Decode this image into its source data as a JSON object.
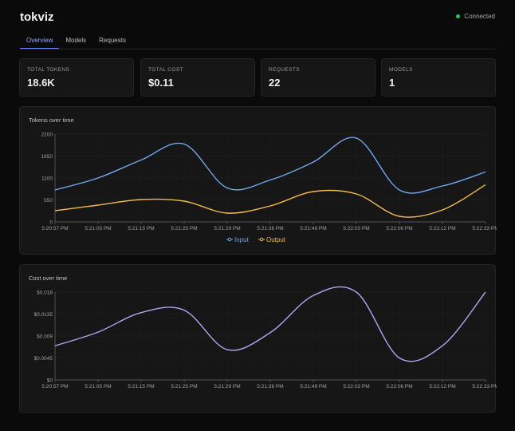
{
  "app": {
    "title": "tokviz",
    "status": "Connected"
  },
  "tabs": [
    {
      "label": "Overview"
    },
    {
      "label": "Models"
    },
    {
      "label": "Requests"
    }
  ],
  "stats": [
    {
      "label": "TOTAL TOKENS",
      "value": "18.6K"
    },
    {
      "label": "TOTAL COST",
      "value": "$0.11"
    },
    {
      "label": "REQUESTS",
      "value": "22"
    },
    {
      "label": "MODELS",
      "value": "1"
    }
  ],
  "colors": {
    "input": "#6fa8ec",
    "output": "#f0b94a",
    "cost": "#b4a3f2",
    "connected": "#22c55e",
    "accent": "#6d8ef7"
  },
  "chart_data": [
    {
      "type": "line",
      "title": "Tokens over time",
      "categories": [
        "5:20:57 PM",
        "5:21:05 PM",
        "5:21:15 PM",
        "5:21:25 PM",
        "5:21:29 PM",
        "5:21:36 PM",
        "5:21:49 PM",
        "5:22:03 PM",
        "5:22:06 PM",
        "5:22:12 PM",
        "5:22:33 PM"
      ],
      "yticks": [
        "0",
        "550",
        "1100",
        "1650",
        "2200"
      ],
      "ylim": [
        0,
        2200
      ],
      "series": [
        {
          "name": "Input",
          "values": [
            800,
            1100,
            1550,
            1950,
            850,
            1050,
            1500,
            2100,
            800,
            900,
            1250
          ]
        },
        {
          "name": "Output",
          "values": [
            280,
            420,
            560,
            520,
            220,
            400,
            760,
            700,
            140,
            300,
            930
          ]
        }
      ],
      "legend": "bottom",
      "grid": true
    },
    {
      "type": "line",
      "title": "Cost over time",
      "categories": [
        "5:20:57 PM",
        "5:21:05 PM",
        "5:21:15 PM",
        "5:21:25 PM",
        "5:21:29 PM",
        "5:21:36 PM",
        "5:21:49 PM",
        "5:22:03 PM",
        "5:22:06 PM",
        "5:22:12 PM",
        "5:22:33 PM"
      ],
      "yticks": [
        "$0",
        "$0.0045",
        "$0.009",
        "$0.0135",
        "$0.018"
      ],
      "ylim": [
        0,
        0.018
      ],
      "series": [
        {
          "values": [
            0.007,
            0.0098,
            0.0138,
            0.0143,
            0.0062,
            0.0097,
            0.0173,
            0.018,
            0.0045,
            0.007,
            0.02
          ]
        }
      ],
      "grid": true
    }
  ]
}
